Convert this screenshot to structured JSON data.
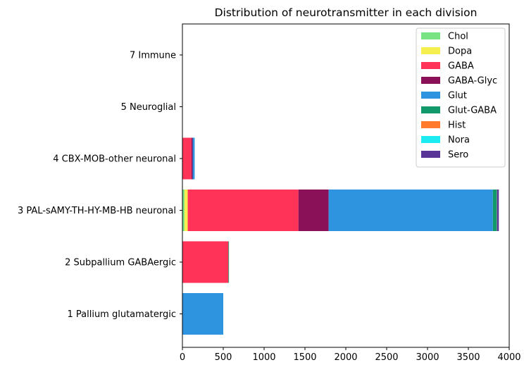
{
  "chart_data": {
    "type": "bar",
    "orientation": "horizontal",
    "stacked": true,
    "title": "Distribution of neurotransmitter in each division",
    "xlabel": "",
    "ylabel": "",
    "xlim": [
      0,
      4000
    ],
    "xticks": [
      0,
      500,
      1000,
      1500,
      2000,
      2500,
      3000,
      3500,
      4000
    ],
    "grid": false,
    "legend_position": "top-right",
    "categories": [
      "1 Pallium glutamatergic",
      "2 Subpallium GABAergic",
      "3 PAL-sAMY-TH-HY-MB-HB neuronal",
      "4 CBX-MOB-other neuronal",
      "5 Neuroglial",
      "7 Immune"
    ],
    "series": [
      {
        "name": "Chol",
        "color": "#77e382",
        "values": [
          0,
          3,
          25,
          0,
          0,
          0
        ]
      },
      {
        "name": "Dopa",
        "color": "#f5ef4f",
        "values": [
          0,
          0,
          40,
          0,
          0,
          0
        ]
      },
      {
        "name": "GABA",
        "color": "#ff3358",
        "values": [
          0,
          560,
          1355,
          110,
          0,
          0
        ]
      },
      {
        "name": "GABA-Glyc",
        "color": "#8a1158",
        "values": [
          0,
          0,
          370,
          15,
          0,
          0
        ]
      },
      {
        "name": "Glut",
        "color": "#2e94df",
        "values": [
          500,
          0,
          2010,
          25,
          0,
          0
        ]
      },
      {
        "name": "Glut-GABA",
        "color": "#10996a",
        "values": [
          0,
          3,
          45,
          0,
          0,
          0
        ]
      },
      {
        "name": "Hist",
        "color": "#ff7a2d",
        "values": [
          0,
          0,
          3,
          0,
          0,
          0
        ]
      },
      {
        "name": "Nora",
        "color": "#1cecf2",
        "values": [
          0,
          0,
          3,
          0,
          0,
          0
        ]
      },
      {
        "name": "Sero",
        "color": "#583596",
        "values": [
          0,
          0,
          22,
          0,
          0,
          0
        ]
      }
    ]
  }
}
